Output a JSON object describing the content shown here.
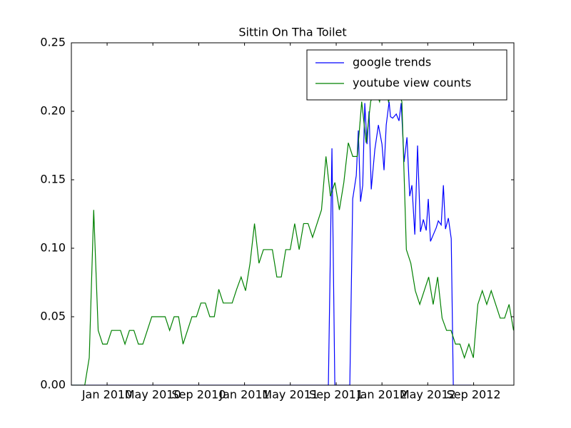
{
  "chart_data": {
    "type": "line",
    "title": "Sittin On Tha Toilet",
    "xlim": [
      2009.74,
      2012.96
    ],
    "xticks": [
      {
        "value": 2010.0,
        "label": "Jan 2010"
      },
      {
        "value": 2010.333,
        "label": "May 2010"
      },
      {
        "value": 2010.667,
        "label": "Sep 2010"
      },
      {
        "value": 2011.0,
        "label": "Jan 2011"
      },
      {
        "value": 2011.333,
        "label": "May 2011"
      },
      {
        "value": 2011.667,
        "label": "Sep 2011"
      },
      {
        "value": 2012.0,
        "label": "Jan 2012"
      },
      {
        "value": 2012.333,
        "label": "May 2012"
      },
      {
        "value": 2012.667,
        "label": "Sep 2012"
      }
    ],
    "ylim": [
      0,
      0.25
    ],
    "yticks": [
      {
        "value": 0,
        "label": "0.00"
      },
      0.05,
      {
        "value": 0.1,
        "label": "0.10"
      },
      0.15,
      {
        "value": 0.2,
        "label": "0.20"
      },
      0.25
    ],
    "legend": "upper right",
    "series": [
      {
        "name": "google trends",
        "color": "#0000ff",
        "x": [
          2009.74,
          2011.61,
          2011.636,
          2011.657,
          2011.766,
          2011.787,
          2011.813,
          2011.828,
          2011.844,
          2011.86,
          2011.875,
          2011.891,
          2011.906,
          2011.922,
          2011.948,
          2011.974,
          2012.0,
          2012.015,
          2012.031,
          2012.052,
          2012.062,
          2012.078,
          2012.104,
          2012.124,
          2012.14,
          2012.161,
          2012.182,
          2012.202,
          2012.218,
          2012.239,
          2012.259,
          2012.28,
          2012.301,
          2012.322,
          2012.337,
          2012.353,
          2012.374,
          2012.395,
          2012.41,
          2012.431,
          2012.447,
          2012.462,
          2012.483,
          2012.504,
          2012.519,
          2012.649
        ],
        "values": [
          0,
          0,
          0.173,
          0,
          0,
          0.136,
          0.153,
          0.186,
          0.134,
          0.146,
          0.206,
          0.176,
          0.2,
          0.143,
          0.172,
          0.19,
          0.176,
          0.157,
          0.19,
          0.207,
          0.196,
          0.195,
          0.198,
          0.193,
          0.206,
          0.163,
          0.181,
          0.138,
          0.146,
          0.11,
          0.175,
          0.112,
          0.121,
          0.113,
          0.136,
          0.105,
          0.11,
          0.115,
          0.12,
          0.117,
          0.146,
          0.114,
          0.122,
          0.107,
          0,
          0
        ]
      },
      {
        "name": "youtube view counts",
        "color": "#008000",
        "x": [
          2009.74,
          2009.7725,
          2009.805,
          2009.8375,
          2009.87,
          2009.9025,
          2009.935,
          2009.9675,
          2010.0,
          2010.0325,
          2010.065,
          2010.0975,
          2010.13,
          2010.1625,
          2010.195,
          2010.2275,
          2010.26,
          2010.2925,
          2010.325,
          2010.3575,
          2010.39,
          2010.4225,
          2010.455,
          2010.4875,
          2010.52,
          2010.5525,
          2010.585,
          2010.6175,
          2010.65,
          2010.6825,
          2010.715,
          2010.7475,
          2010.78,
          2010.8125,
          2010.845,
          2010.8775,
          2010.91,
          2010.9425,
          2010.975,
          2011.0075,
          2011.04,
          2011.0725,
          2011.105,
          2011.1375,
          2011.17,
          2011.2025,
          2011.235,
          2011.2675,
          2011.3,
          2011.3325,
          2011.365,
          2011.3975,
          2011.43,
          2011.4625,
          2011.495,
          2011.5275,
          2011.56,
          2011.5925,
          2011.625,
          2011.6575,
          2011.69,
          2011.7225,
          2011.755,
          2011.7875,
          2011.82,
          2011.8525,
          2011.885,
          2011.9175,
          2011.95,
          2011.9825,
          2012.015,
          2012.0475,
          2012.08,
          2012.1125,
          2012.145,
          2012.1775,
          2012.21,
          2012.2425,
          2012.275,
          2012.3075,
          2012.34,
          2012.3725,
          2012.405,
          2012.4375,
          2012.47,
          2012.5025,
          2012.535,
          2012.5675,
          2012.6,
          2012.6325,
          2012.665,
          2012.6975,
          2012.73,
          2012.7625,
          2012.795,
          2012.8275,
          2012.86,
          2012.8925,
          2012.925,
          2012.9575
        ],
        "values": [
          0,
          0,
          0,
          0,
          0.02,
          0.128,
          0.04,
          0.03,
          0.03,
          0.04,
          0.04,
          0.04,
          0.03,
          0.04,
          0.04,
          0.03,
          0.03,
          0.04,
          0.05,
          0.05,
          0.05,
          0.05,
          0.04,
          0.05,
          0.05,
          0.03,
          0.04,
          0.05,
          0.05,
          0.06,
          0.06,
          0.05,
          0.05,
          0.07,
          0.06,
          0.06,
          0.06,
          0.07,
          0.079,
          0.069,
          0.089,
          0.118,
          0.089,
          0.099,
          0.099,
          0.099,
          0.079,
          0.079,
          0.099,
          0.099,
          0.118,
          0.099,
          0.118,
          0.118,
          0.108,
          0.118,
          0.128,
          0.167,
          0.138,
          0.148,
          0.128,
          0.148,
          0.177,
          0.167,
          0.167,
          0.207,
          0.177,
          0.207,
          0.216,
          0.207,
          0.226,
          0.207,
          0.216,
          0.216,
          0.207,
          0.099,
          0.089,
          0.069,
          0.059,
          0.069,
          0.079,
          0.059,
          0.079,
          0.049,
          0.04,
          0.04,
          0.03,
          0.03,
          0.02,
          0.03,
          0.02,
          0.059,
          0.069,
          0.059,
          0.069,
          0.059,
          0.049,
          0.049,
          0.059,
          0.04
        ]
      }
    ]
  }
}
